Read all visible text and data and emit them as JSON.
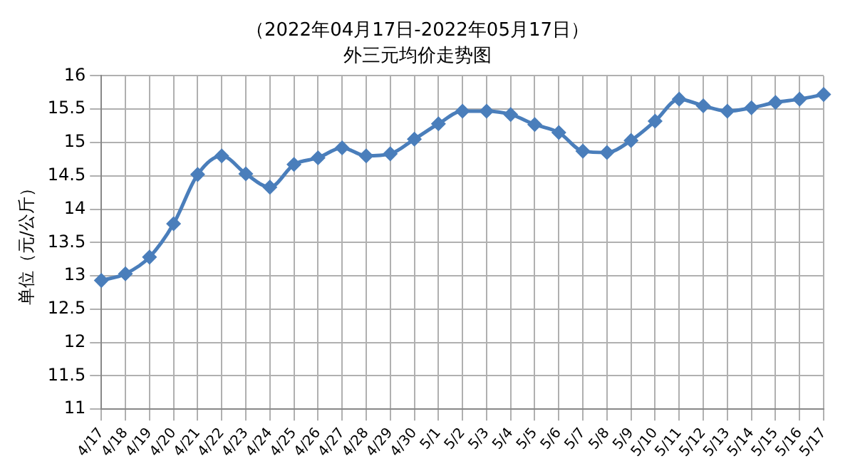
{
  "chart_data": {
    "type": "line",
    "title": "（2022年04月17日-2022年05月17日）",
    "subtitle": "外三元均价走势图",
    "ylabel": "单位（元/公斤）",
    "categories": [
      "4/17",
      "4/18",
      "4/19",
      "4/20",
      "4/21",
      "4/22",
      "4/23",
      "4/24",
      "4/25",
      "4/26",
      "4/27",
      "4/28",
      "4/29",
      "4/30",
      "5/1",
      "5/2",
      "5/3",
      "5/4",
      "5/5",
      "5/6",
      "5/7",
      "5/8",
      "5/9",
      "5/10",
      "5/11",
      "5/12",
      "5/13",
      "5/14",
      "5/15",
      "5/16",
      "5/17"
    ],
    "series": [
      {
        "color": "#4a7ebb",
        "values": [
          12.93,
          13.03,
          13.28,
          13.78,
          14.52,
          14.8,
          14.53,
          14.33,
          14.67,
          14.77,
          14.92,
          14.8,
          14.83,
          15.05,
          15.28,
          15.47,
          15.47,
          15.42,
          15.27,
          15.15,
          14.87,
          14.85,
          15.03,
          15.32,
          15.65,
          15.55,
          15.47,
          15.52,
          15.6,
          15.65,
          15.72
        ]
      }
    ],
    "ylim": [
      11,
      16
    ],
    "yticks": [
      11,
      11.5,
      12,
      12.5,
      13,
      13.5,
      14,
      14.5,
      15,
      15.5,
      16
    ],
    "grid": true,
    "marker": "diamond",
    "line_style": "solid",
    "legend": false
  }
}
